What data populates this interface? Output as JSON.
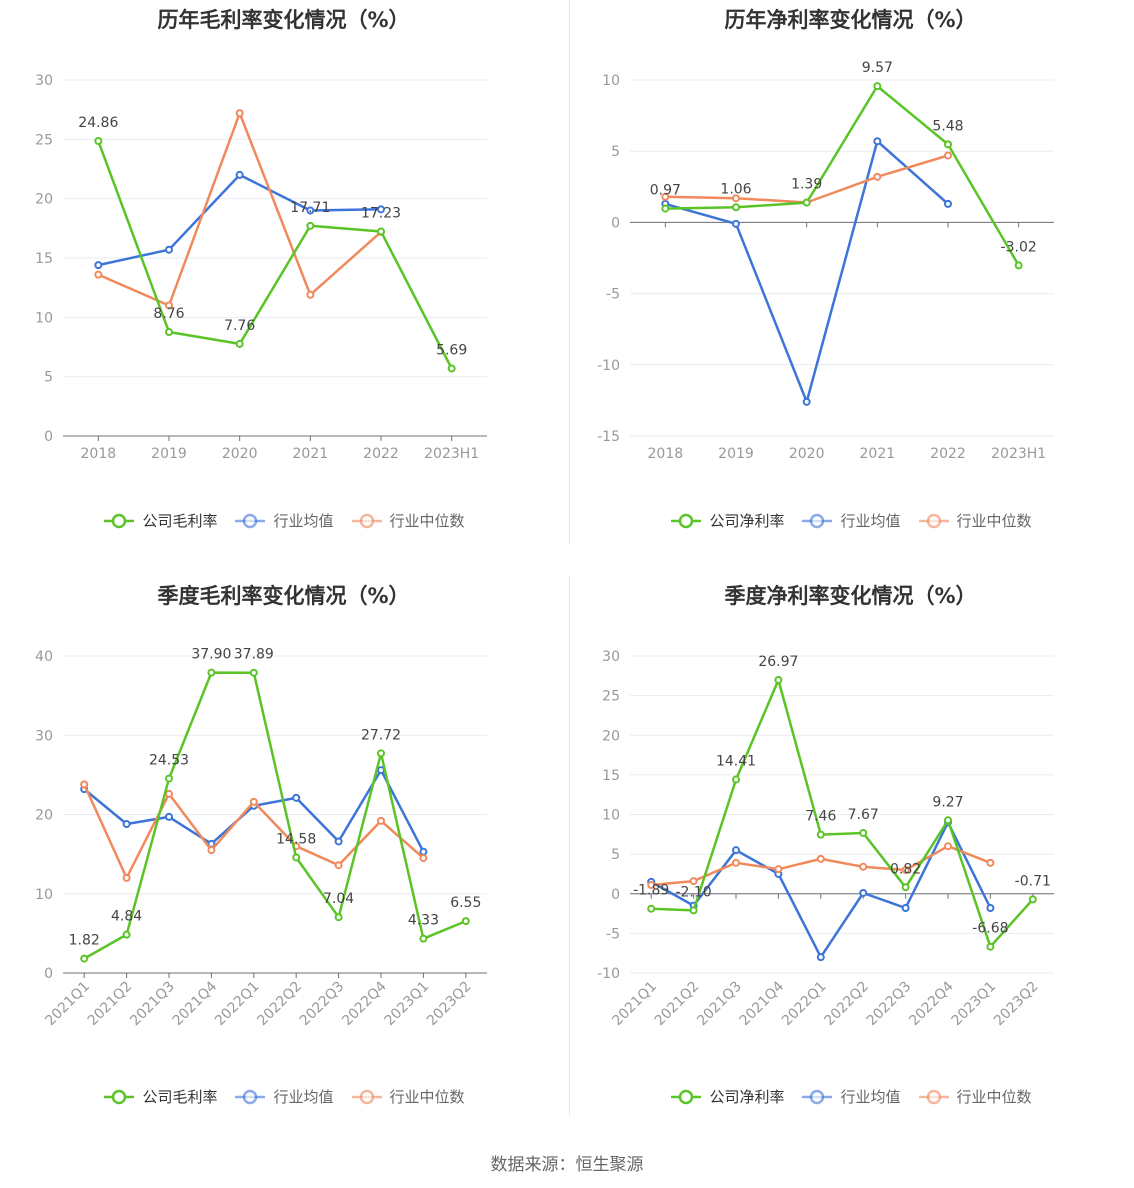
{
  "source": "数据来源：恒生聚源",
  "colors": {
    "company": "#5ac427",
    "avg": "#3d74d8",
    "median": "#f08a5d"
  },
  "chart_data": [
    {
      "type": "line",
      "title": "历年毛利率变化情况（%）",
      "categories": [
        "2018",
        "2019",
        "2020",
        "2021",
        "2022",
        "2023H1"
      ],
      "ylim": [
        0,
        30
      ],
      "yticks": [
        0,
        5,
        10,
        15,
        20,
        25,
        30
      ],
      "ytick_labels": [
        "0",
        "5",
        "10",
        "15",
        "20",
        "25",
        "30"
      ],
      "rotate_x": false,
      "legend": [
        "公司毛利率",
        "行业均值",
        "行业中位数"
      ],
      "series": [
        {
          "name": "公司毛利率",
          "color": "#5ac427",
          "values": [
            24.86,
            8.76,
            7.76,
            17.71,
            17.23,
            5.69
          ],
          "labels": [
            "24.86",
            "8.76",
            "7.76",
            "17.71",
            "17.23",
            "5.69"
          ]
        },
        {
          "name": "行业均值",
          "color": "#3d74d8",
          "values": [
            14.4,
            15.7,
            22.0,
            19.0,
            19.1,
            null
          ]
        },
        {
          "name": "行业中位数",
          "color": "#f08a5d",
          "values": [
            13.6,
            11.0,
            27.2,
            11.9,
            17.2,
            null
          ]
        }
      ]
    },
    {
      "type": "line",
      "title": "历年净利率变化情况（%）",
      "categories": [
        "2018",
        "2019",
        "2020",
        "2021",
        "2022",
        "2023H1"
      ],
      "ylim": [
        -15,
        10
      ],
      "yticks": [
        -15,
        -10,
        -5,
        0,
        5,
        10
      ],
      "ytick_labels": [
        "-15",
        "-10",
        "-5",
        "0",
        "5",
        "10"
      ],
      "rotate_x": false,
      "legend": [
        "公司净利率",
        "行业均值",
        "行业中位数"
      ],
      "series": [
        {
          "name": "公司净利率",
          "color": "#5ac427",
          "values": [
            0.97,
            1.06,
            1.39,
            9.57,
            5.48,
            -3.02
          ],
          "labels": [
            "0.97",
            "1.06",
            "1.39",
            "9.57",
            "5.48",
            "-3.02"
          ]
        },
        {
          "name": "行业均值",
          "color": "#3d74d8",
          "values": [
            1.3,
            -0.1,
            -12.6,
            5.7,
            1.3,
            null
          ]
        },
        {
          "name": "行业中位数",
          "color": "#f08a5d",
          "values": [
            1.8,
            1.7,
            1.4,
            3.2,
            4.7,
            null
          ]
        }
      ]
    },
    {
      "type": "line",
      "title": "季度毛利率变化情况（%）",
      "categories": [
        "2021Q1",
        "2021Q2",
        "2021Q3",
        "2021Q4",
        "2022Q1",
        "2022Q2",
        "2022Q3",
        "2022Q4",
        "2023Q1",
        "2023Q2"
      ],
      "ylim": [
        0,
        40
      ],
      "yticks": [
        0,
        10,
        20,
        30,
        40
      ],
      "ytick_labels": [
        "0",
        "10",
        "20",
        "30",
        "40"
      ],
      "rotate_x": true,
      "legend": [
        "公司毛利率",
        "行业均值",
        "行业中位数"
      ],
      "series": [
        {
          "name": "公司毛利率",
          "color": "#5ac427",
          "values": [
            1.82,
            4.84,
            24.53,
            37.9,
            37.89,
            14.58,
            7.04,
            27.72,
            4.33,
            6.55
          ],
          "labels": [
            "1.82",
            "4.84",
            "24.53",
            "37.90",
            "37.89",
            "14.58",
            "7.04",
            "27.72",
            "4.33",
            "6.55"
          ]
        },
        {
          "name": "行业均值",
          "color": "#3d74d8",
          "values": [
            23.2,
            18.8,
            19.7,
            16.3,
            21.1,
            22.1,
            16.6,
            25.6,
            15.3,
            null
          ]
        },
        {
          "name": "行业中位数",
          "color": "#f08a5d",
          "values": [
            23.8,
            12.0,
            22.6,
            15.5,
            21.6,
            16.0,
            13.6,
            19.2,
            14.5,
            null
          ]
        }
      ]
    },
    {
      "type": "line",
      "title": "季度净利率变化情况（%）",
      "categories": [
        "2021Q1",
        "2021Q2",
        "2021Q3",
        "2021Q4",
        "2022Q1",
        "2022Q2",
        "2022Q3",
        "2022Q4",
        "2023Q1",
        "2023Q2"
      ],
      "ylim": [
        -10,
        30
      ],
      "yticks": [
        -10,
        -5,
        0,
        5,
        10,
        15,
        20,
        25,
        30
      ],
      "ytick_labels": [
        "-10",
        "-5",
        "0",
        "5",
        "10",
        "15",
        "20",
        "25",
        "30"
      ],
      "rotate_x": true,
      "legend": [
        "公司净利率",
        "行业均值",
        "行业中位数"
      ],
      "series": [
        {
          "name": "公司净利率",
          "color": "#5ac427",
          "values": [
            -1.89,
            -2.1,
            14.41,
            26.97,
            7.46,
            7.67,
            0.82,
            9.27,
            -6.68,
            -0.71
          ],
          "labels": [
            "-1.89",
            "-2.10",
            "14.41",
            "26.97",
            "7.46",
            "7.67",
            "0.82",
            "9.27",
            "-6.68",
            "-0.71"
          ]
        },
        {
          "name": "行业均值",
          "color": "#3d74d8",
          "values": [
            1.5,
            -1.5,
            5.5,
            2.5,
            -8.0,
            0.1,
            -1.8,
            9.0,
            -1.8,
            null
          ]
        },
        {
          "name": "行业中位数",
          "color": "#f08a5d",
          "values": [
            1.1,
            1.6,
            3.9,
            3.1,
            4.4,
            3.4,
            3.0,
            6.0,
            3.9,
            null
          ]
        }
      ]
    }
  ]
}
